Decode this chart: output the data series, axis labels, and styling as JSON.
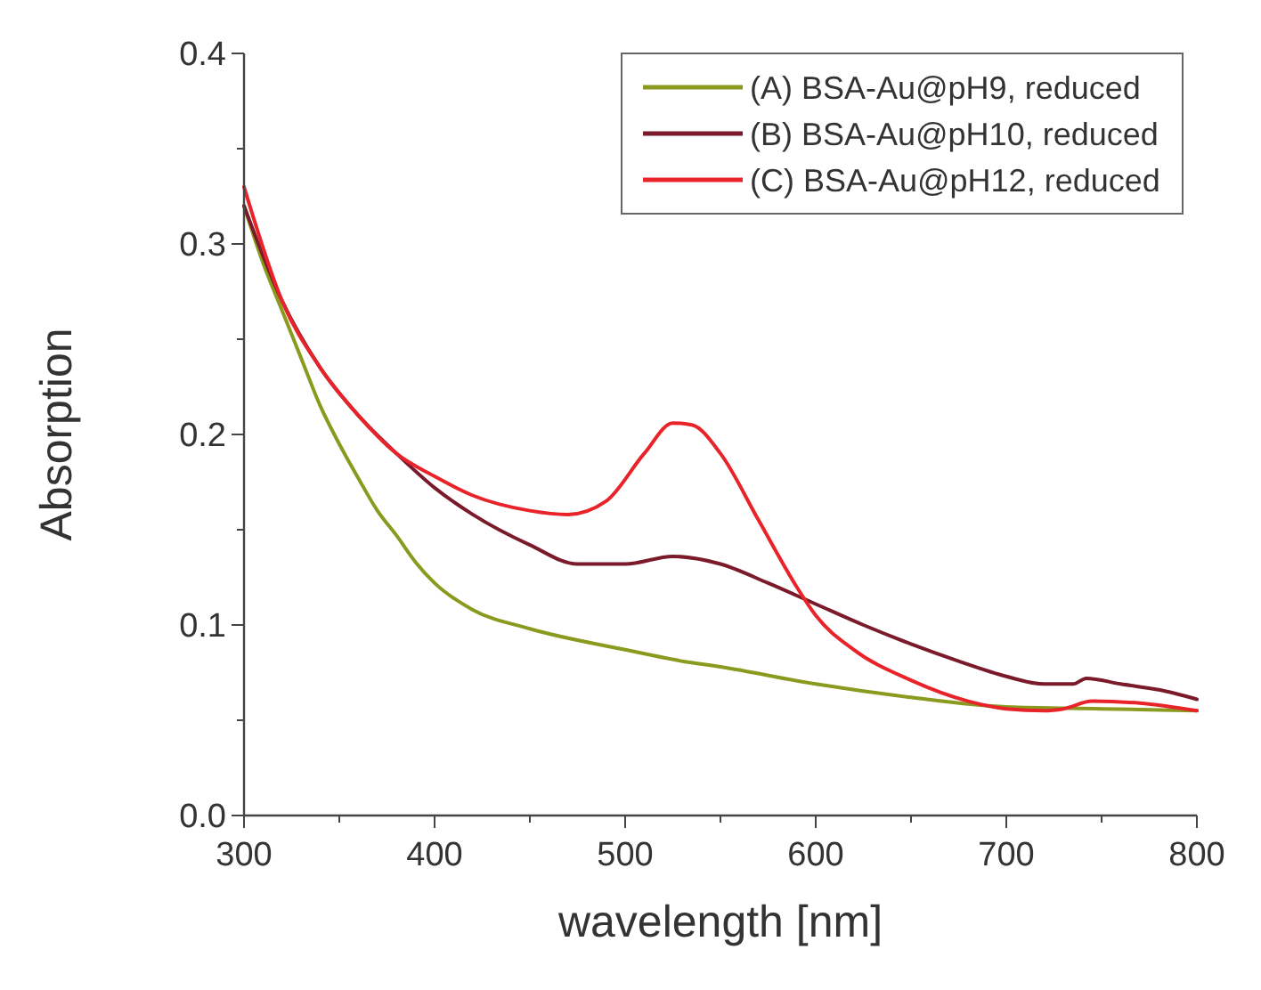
{
  "chart_data": {
    "type": "line",
    "xlabel": "wavelength [nm]",
    "ylabel": "Absorption",
    "xlim": [
      300,
      800
    ],
    "xticks": [
      300,
      {
        "value": 350,
        "label": null
      },
      400,
      {
        "value": 450,
        "label": null
      },
      500,
      {
        "value": 550,
        "label": null
      },
      600,
      {
        "value": 650,
        "label": null
      },
      700,
      {
        "value": 750,
        "label": null
      },
      800
    ],
    "ylim": [
      0,
      0.4
    ],
    "yticks": [
      {
        "value": 0,
        "label": "0.0"
      },
      {
        "value": 0.05,
        "label": null
      },
      0.1,
      {
        "value": 0.15,
        "label": null
      },
      0.2,
      {
        "value": 0.25,
        "label": null
      },
      0.3,
      {
        "value": 0.35,
        "label": null
      },
      0.4
    ],
    "grid": false,
    "legend": "top right",
    "line_style": "solid",
    "marker": "none",
    "series": [
      {
        "name": "(A) BSA-Au@pH9, reduced",
        "color": "#8a9a1e",
        "x": [
          300,
          310,
          320,
          330,
          340,
          350,
          360,
          370,
          380,
          390,
          400,
          420,
          450,
          500,
          530,
          550,
          600,
          650,
          700,
          750,
          800
        ],
        "values": [
          0.32,
          0.29,
          0.265,
          0.24,
          0.215,
          0.195,
          0.177,
          0.16,
          0.147,
          0.133,
          0.122,
          0.108,
          0.098,
          0.087,
          0.081,
          0.078,
          0.069,
          0.062,
          0.057,
          0.056,
          0.055
        ]
      },
      {
        "name": "(B) BSA-Au@pH10, reduced",
        "color": "#7a1a2a",
        "x": [
          300,
          320,
          340,
          360,
          380,
          400,
          420,
          450,
          475,
          500,
          525,
          550,
          575,
          600,
          625,
          650,
          675,
          700,
          720,
          735,
          742,
          760,
          780,
          800
        ],
        "values": [
          0.32,
          0.27,
          0.235,
          0.21,
          0.19,
          0.172,
          0.158,
          0.142,
          0.132,
          0.132,
          0.136,
          0.132,
          0.122,
          0.111,
          0.1,
          0.09,
          0.081,
          0.073,
          0.069,
          0.069,
          0.072,
          0.069,
          0.066,
          0.061
        ]
      },
      {
        "name": "(C) BSA-Au@pH12, reduced",
        "color": "#e8242a",
        "x": [
          300,
          320,
          340,
          360,
          380,
          400,
          420,
          450,
          470,
          490,
          510,
          525,
          535,
          550,
          570,
          590,
          600,
          620,
          650,
          680,
          700,
          720,
          730,
          745,
          770,
          800
        ],
        "values": [
          0.33,
          0.27,
          0.235,
          0.21,
          0.19,
          0.178,
          0.168,
          0.16,
          0.158,
          0.165,
          0.19,
          0.206,
          0.205,
          0.19,
          0.155,
          0.12,
          0.105,
          0.087,
          0.071,
          0.06,
          0.056,
          0.055,
          0.056,
          0.06,
          0.059,
          0.055
        ]
      }
    ]
  }
}
